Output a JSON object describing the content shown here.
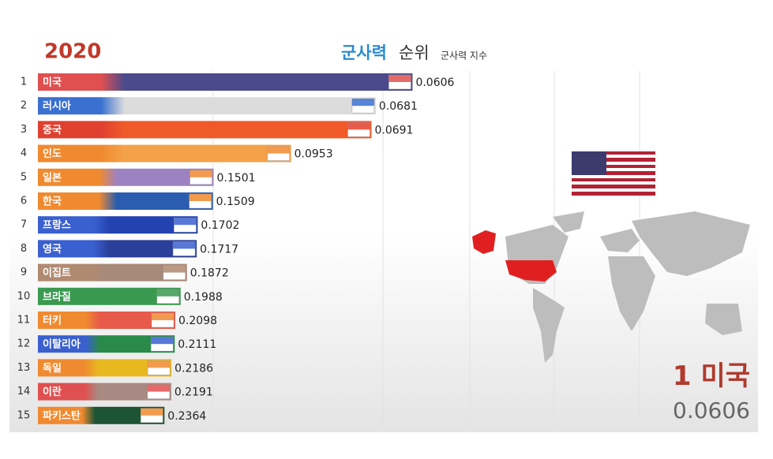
{
  "chart_data": {
    "type": "bar",
    "year": "2020",
    "title_highlight": "군사력",
    "title": "순위",
    "subtitle": "군사력 지수",
    "ranks": [
      "1",
      "2",
      "3",
      "4",
      "5",
      "6",
      "7",
      "8",
      "9",
      "10",
      "11",
      "12",
      "13",
      "14",
      "15"
    ],
    "categories": [
      "미국",
      "러시아",
      "중국",
      "인도",
      "일본",
      "한국",
      "프랑스",
      "영국",
      "이집트",
      "브라질",
      "터키",
      "이탈리아",
      "독일",
      "이란",
      "파키스탄"
    ],
    "values": [
      0.0606,
      0.0681,
      0.0691,
      0.0953,
      0.1501,
      0.1509,
      0.1702,
      0.1717,
      0.1872,
      0.1988,
      0.2098,
      0.2111,
      0.2186,
      0.2191,
      0.2364
    ],
    "colors": [
      "#4a4a8c",
      "#dcdcdc",
      "#f05a28",
      "#f4a24a",
      "#9d82c2",
      "#2a5db0",
      "#2343b0",
      "#2a3f9a",
      "#a88a7a",
      "#3a9a50",
      "#e85a4a",
      "#2a8a4a",
      "#e8b820",
      "#a88a82",
      "#1d5534"
    ],
    "label_colors": [
      "#e05050",
      "#3a70d0",
      "#e04030",
      "#f08a30",
      "#f08a30",
      "#f08a30",
      "#3a60d0",
      "#3a60d0",
      "#b08a70",
      "#3a9a50",
      "#f08a30",
      "#3a60d0",
      "#f08a30",
      "#e05050",
      "#f08a30"
    ]
  }
}
